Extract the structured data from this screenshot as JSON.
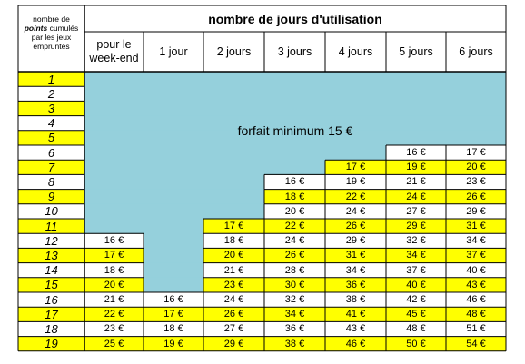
{
  "table": {
    "corner_header": {
      "line1": "nombre de",
      "line2_italic_bold": "points",
      "line2_rest": " cumulés",
      "line3": "par les jeux",
      "line4": "empruntés"
    },
    "main_header": "nombre de jours d'utilisation",
    "columns": [
      {
        "line1": "pour le",
        "line2": "week-end"
      },
      {
        "line1": "1 jour",
        "line2": ""
      },
      {
        "line1": "2 jours",
        "line2": ""
      },
      {
        "line1": "3 jours",
        "line2": ""
      },
      {
        "line1": "4 jours",
        "line2": ""
      },
      {
        "line1": "5 jours",
        "line2": ""
      },
      {
        "line1": "6 jours",
        "line2": ""
      }
    ],
    "forfait_label": "forfait minimum 15 €",
    "rows": [
      {
        "points": "1",
        "highlight": true,
        "prices": [
          null,
          null,
          null,
          null,
          null,
          null,
          null
        ]
      },
      {
        "points": "2",
        "highlight": false,
        "prices": [
          null,
          null,
          null,
          null,
          null,
          null,
          null
        ]
      },
      {
        "points": "3",
        "highlight": true,
        "prices": [
          null,
          null,
          null,
          null,
          null,
          null,
          null
        ]
      },
      {
        "points": "4",
        "highlight": false,
        "prices": [
          null,
          null,
          null,
          null,
          null,
          null,
          null
        ]
      },
      {
        "points": "5",
        "highlight": true,
        "prices": [
          null,
          null,
          null,
          null,
          null,
          null,
          null
        ]
      },
      {
        "points": "6",
        "highlight": false,
        "prices": [
          null,
          null,
          null,
          null,
          null,
          "16 €",
          "17 €"
        ]
      },
      {
        "points": "7",
        "highlight": true,
        "prices": [
          null,
          null,
          null,
          null,
          "17 €",
          "19 €",
          "20 €"
        ]
      },
      {
        "points": "8",
        "highlight": false,
        "prices": [
          null,
          null,
          null,
          "16 €",
          "19 €",
          "21 €",
          "23 €"
        ]
      },
      {
        "points": "9",
        "highlight": true,
        "prices": [
          null,
          null,
          null,
          "18 €",
          "22 €",
          "24 €",
          "26 €"
        ]
      },
      {
        "points": "10",
        "highlight": false,
        "prices": [
          null,
          null,
          null,
          "20 €",
          "24 €",
          "27 €",
          "29 €"
        ]
      },
      {
        "points": "11",
        "highlight": true,
        "prices": [
          null,
          null,
          "17 €",
          "22 €",
          "26 €",
          "29 €",
          "31 €"
        ]
      },
      {
        "points": "12",
        "highlight": false,
        "prices": [
          "16 €",
          null,
          "18 €",
          "24 €",
          "29 €",
          "32 €",
          "34 €"
        ]
      },
      {
        "points": "13",
        "highlight": true,
        "prices": [
          "17 €",
          null,
          "20 €",
          "26 €",
          "31 €",
          "34 €",
          "37 €"
        ]
      },
      {
        "points": "14",
        "highlight": false,
        "prices": [
          "18 €",
          null,
          "21 €",
          "28 €",
          "34 €",
          "37 €",
          "40 €"
        ]
      },
      {
        "points": "15",
        "highlight": true,
        "prices": [
          "20 €",
          null,
          "23 €",
          "30 €",
          "36 €",
          "40 €",
          "43 €"
        ]
      },
      {
        "points": "16",
        "highlight": false,
        "prices": [
          "21 €",
          "16 €",
          "24 €",
          "32 €",
          "38 €",
          "42 €",
          "46 €"
        ]
      },
      {
        "points": "17",
        "highlight": true,
        "prices": [
          "22 €",
          "17 €",
          "26 €",
          "34 €",
          "41 €",
          "45 €",
          "48 €"
        ]
      },
      {
        "points": "18",
        "highlight": false,
        "prices": [
          "23 €",
          "18 €",
          "27 €",
          "36 €",
          "43 €",
          "48 €",
          "51 €"
        ]
      },
      {
        "points": "19",
        "highlight": true,
        "prices": [
          "25 €",
          "19 €",
          "29 €",
          "38 €",
          "46 €",
          "50 €",
          "54 €"
        ]
      }
    ],
    "colors": {
      "yellow": "#ffff00",
      "forfait_blue": "#95d0dc",
      "grid": "#000000"
    }
  }
}
